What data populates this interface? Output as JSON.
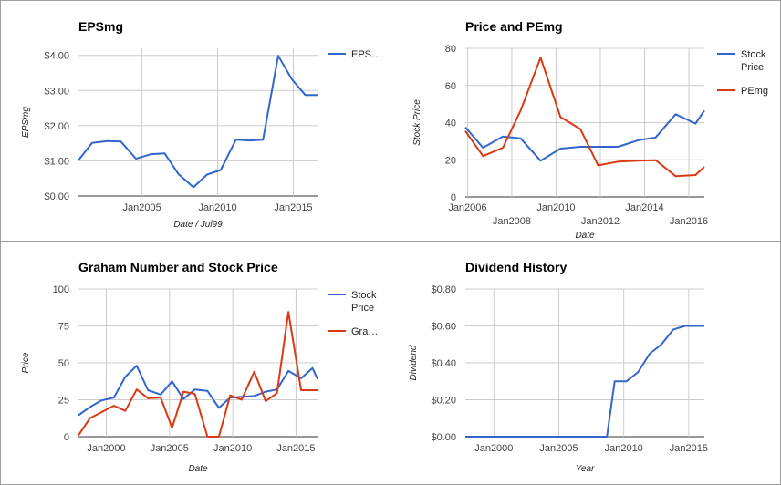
{
  "colors": {
    "blue": "#3366cc",
    "red": "#dc3912"
  },
  "chart_data": [
    {
      "type": "line",
      "title": "EPSmg",
      "xlabel": "Date / Jul99",
      "ylabel": "EPSmg",
      "x_ticks": [
        {
          "label": "Jan2005",
          "value": 2005.0
        },
        {
          "label": "Jan2010",
          "value": 2010.0
        },
        {
          "label": "Jan2015",
          "value": 2015.0
        }
      ],
      "y_ticks": [
        "$0.00",
        "$1.00",
        "$2.00",
        "$3.00",
        "$4.00"
      ],
      "y_tick_values": [
        0,
        1,
        2,
        3,
        4
      ],
      "xlim": [
        2000.8,
        2016.6
      ],
      "ylim": [
        0,
        4.2
      ],
      "legend_position": "right",
      "series": [
        {
          "name": "EPS…",
          "color": "#3366cc",
          "x": [
            2000.8,
            2001.7,
            2002.7,
            2003.6,
            2004.6,
            2005.6,
            2006.5,
            2007.4,
            2008.4,
            2009.3,
            2010.2,
            2011.2,
            2012.1,
            2013.0,
            2014.0,
            2014.9,
            2015.8,
            2016.6
          ],
          "y": [
            1.02,
            1.51,
            1.56,
            1.55,
            1.06,
            1.19,
            1.21,
            0.63,
            0.25,
            0.61,
            0.74,
            1.6,
            1.58,
            1.6,
            3.99,
            3.32,
            2.87,
            2.87
          ]
        }
      ]
    },
    {
      "type": "line",
      "title": "Price and PEmg",
      "xlabel": "Date",
      "ylabel": "Stock Price",
      "x_ticks": [
        {
          "label": "Jan2006",
          "value": 2006.0,
          "row": 1
        },
        {
          "label": "Jan2008",
          "value": 2008.0,
          "row": 2
        },
        {
          "label": "Jan2010",
          "value": 2010.0,
          "row": 1
        },
        {
          "label": "Jan2012",
          "value": 2012.0,
          "row": 2
        },
        {
          "label": "Jan2014",
          "value": 2014.0,
          "row": 1
        },
        {
          "label": "Jan2016",
          "value": 2016.0,
          "row": 2
        }
      ],
      "y_ticks": [
        "0",
        "20",
        "40",
        "60",
        "80"
      ],
      "y_tick_values": [
        0,
        20,
        40,
        60,
        80
      ],
      "xlim": [
        2005.9,
        2016.7
      ],
      "ylim": [
        0,
        80
      ],
      "legend_position": "right",
      "series": [
        {
          "name_lines": [
            "Stock",
            "Price"
          ],
          "color": "#3366cc",
          "x": [
            2005.9,
            2006.7,
            2007.6,
            2008.4,
            2009.3,
            2010.2,
            2011.1,
            2011.9,
            2012.8,
            2013.7,
            2014.5,
            2015.4,
            2016.3,
            2016.7
          ],
          "y": [
            37.5,
            26.5,
            32.5,
            31.5,
            19.5,
            26.0,
            27.0,
            27.0,
            27.0,
            30.5,
            32.0,
            44.5,
            39.5,
            46.5
          ]
        },
        {
          "name_lines": [
            "PEmg"
          ],
          "color": "#dc3912",
          "x": [
            2005.9,
            2006.7,
            2007.6,
            2008.4,
            2009.3,
            2010.2,
            2011.1,
            2011.9,
            2012.8,
            2013.7,
            2014.5,
            2015.4,
            2016.3,
            2016.7
          ],
          "y": [
            35.5,
            22.0,
            26.5,
            46.5,
            75.0,
            43.0,
            36.5,
            17.0,
            19.0,
            19.5,
            19.8,
            11.2,
            11.8,
            16.2
          ]
        }
      ]
    },
    {
      "type": "line",
      "title": "Graham Number and Stock Price",
      "xlabel": "Date",
      "ylabel": "Price",
      "x_ticks": [
        {
          "label": "Jan2000",
          "value": 2000.0
        },
        {
          "label": "Jan2005",
          "value": 2005.0
        },
        {
          "label": "Jan2010",
          "value": 2010.0
        },
        {
          "label": "Jan2015",
          "value": 2015.0
        }
      ],
      "y_ticks": [
        "0",
        "25",
        "50",
        "75",
        "100"
      ],
      "y_tick_values": [
        0,
        25,
        50,
        75,
        100
      ],
      "xlim": [
        1997.8,
        2016.7
      ],
      "ylim": [
        0,
        100
      ],
      "legend_position": "right",
      "series": [
        {
          "name_lines": [
            "Stock",
            "Price"
          ],
          "color": "#3366cc",
          "x": [
            1997.8,
            1998.7,
            1999.6,
            2000.6,
            2001.5,
            2002.4,
            2003.3,
            2004.3,
            2005.2,
            2006.1,
            2007.0,
            2008.0,
            2008.9,
            2009.8,
            2010.7,
            2011.7,
            2012.6,
            2013.5,
            2014.4,
            2015.4,
            2016.3,
            2016.7
          ],
          "y": [
            14.5,
            20.0,
            24.5,
            26.5,
            40.5,
            48.0,
            31.5,
            28.5,
            37.5,
            25.5,
            32.0,
            31.0,
            19.5,
            26.5,
            27.0,
            27.5,
            30.5,
            32.0,
            44.5,
            39.5,
            46.5,
            39.0
          ]
        },
        {
          "name_lines": [
            "Gra…"
          ],
          "color": "#dc3912",
          "x": [
            1997.8,
            1998.7,
            1999.6,
            2000.6,
            2001.5,
            2002.4,
            2003.3,
            2004.3,
            2005.2,
            2006.1,
            2007.0,
            2008.0,
            2008.9,
            2009.8,
            2010.7,
            2011.7,
            2012.6,
            2013.5,
            2014.4,
            2015.4,
            2016.3,
            2016.7
          ],
          "y": [
            1.0,
            12.5,
            16.5,
            21.0,
            17.5,
            32.0,
            26.0,
            26.5,
            6.0,
            30.5,
            29.0,
            0.0,
            0.0,
            28.0,
            25.0,
            44.0,
            24.0,
            29.5,
            84.5,
            31.5,
            31.5,
            31.5
          ]
        }
      ]
    },
    {
      "type": "line",
      "title": "Dividend History",
      "xlabel": "Year",
      "ylabel": "Dividend",
      "x_ticks": [
        {
          "label": "Jan2000",
          "value": 2000.0
        },
        {
          "label": "Jan2005",
          "value": 2005.0
        },
        {
          "label": "Jan2010",
          "value": 2010.0
        },
        {
          "label": "Jan2015",
          "value": 2015.0
        }
      ],
      "y_ticks": [
        "$0.00",
        "$0.20",
        "$0.40",
        "$0.60",
        "$0.80"
      ],
      "y_tick_values": [
        0,
        0.2,
        0.4,
        0.6,
        0.8
      ],
      "xlim": [
        1997.8,
        2016.2
      ],
      "ylim": [
        0,
        0.8
      ],
      "legend_position": "none",
      "series": [
        {
          "color": "#3366cc",
          "x": [
            1997.8,
            2008.7,
            2009.3,
            2010.2,
            2011.1,
            2012.0,
            2012.9,
            2013.8,
            2014.7,
            2015.6,
            2016.2
          ],
          "y": [
            0.0,
            0.0,
            0.3,
            0.3,
            0.35,
            0.45,
            0.5,
            0.58,
            0.6,
            0.6,
            0.6
          ]
        }
      ]
    }
  ]
}
